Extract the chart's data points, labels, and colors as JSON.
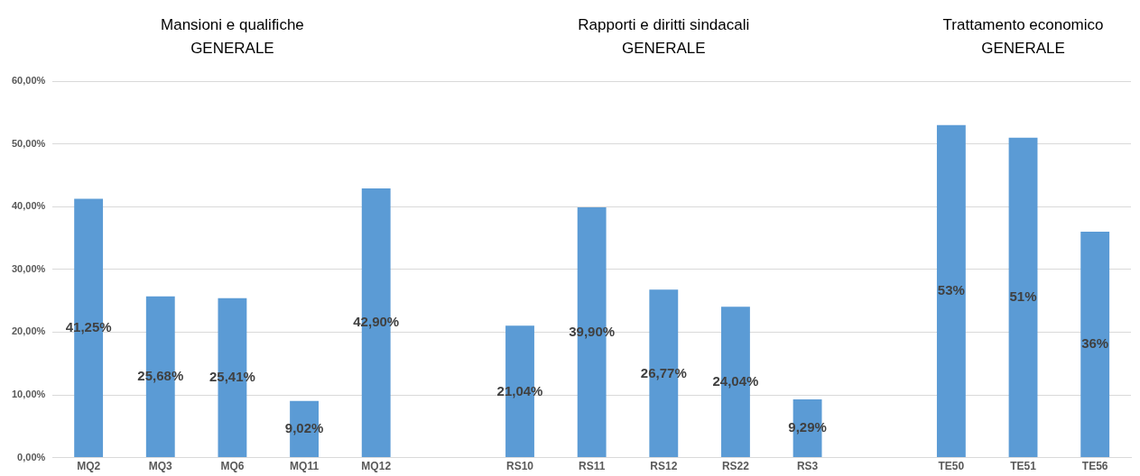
{
  "chart_data": {
    "type": "bar",
    "annotations": [
      "Mansioni e qualifiche\nGENERALE",
      "Rapporti e diritti sindacali\nGENERALE",
      "Trattamento economico\nGENERALE"
    ],
    "categories": [
      "MQ2",
      "MQ3",
      "MQ6",
      "MQ11",
      "MQ12",
      null,
      "RS10",
      "RS11",
      "RS12",
      "RS22",
      "RS3",
      null,
      "TE50",
      "TE51",
      "TE56"
    ],
    "values": [
      41.25,
      25.68,
      25.41,
      9.02,
      42.9,
      null,
      21.04,
      39.9,
      26.77,
      24.04,
      9.29,
      null,
      53,
      51,
      36
    ],
    "value_labels": [
      "41,25%",
      "25,68%",
      "25,41%",
      "9,02%",
      "42,90%",
      null,
      "21,04%",
      "39,90%",
      "26,77%",
      "24,04%",
      "9,29%",
      null,
      "53%",
      "51%",
      "36%"
    ],
    "color": "#5b9bd5",
    "ylim": [
      0,
      60
    ],
    "yticks": [
      {
        "value": 0,
        "label": "0,00%"
      },
      {
        "value": 10,
        "label": "10,00%"
      },
      {
        "value": 20,
        "label": "20,00%"
      },
      {
        "value": 30,
        "label": "30,00%"
      },
      {
        "value": 40,
        "label": "40,00%"
      },
      {
        "value": 50,
        "label": "50,00%"
      },
      {
        "value": 60,
        "label": "60,00%"
      }
    ],
    "grid": "y",
    "legend": false
  }
}
